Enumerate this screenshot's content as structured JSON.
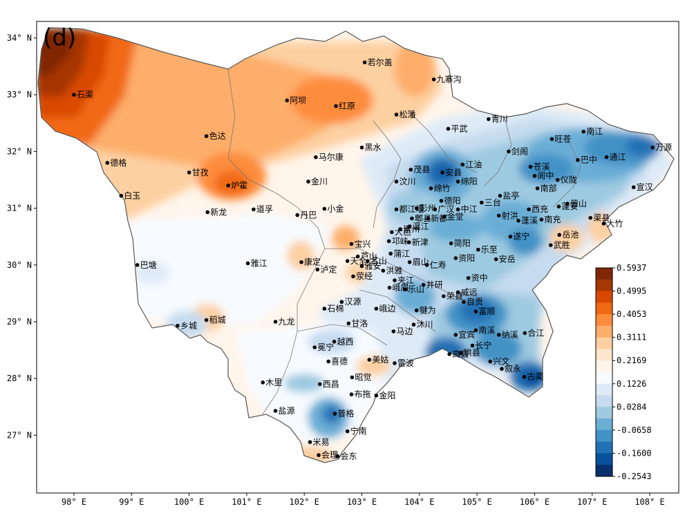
{
  "panel_label": "(d)",
  "lon_ticks": [
    "98° E",
    "99° E",
    "100° E",
    "101° E",
    "102° E",
    "103° E",
    "104° E",
    "105° E",
    "106° E",
    "107° E",
    "108° E"
  ],
  "lat_ticks": [
    "34° N",
    "33° N",
    "32° N",
    "31° N",
    "30° N",
    "29° N",
    "28° N",
    "27° N"
  ],
  "colorbar": {
    "labels": [
      "0.5937",
      "0.4995",
      "0.4053",
      "0.3111",
      "0.2169",
      "0.1226",
      "0.0284",
      "-0.0658",
      "-0.1600",
      "-0.2543"
    ],
    "colors": [
      "#7f2704",
      "#a63603",
      "#d94801",
      "#f16913",
      "#fd8d3c",
      "#fdae6b",
      "#fdd0a2",
      "#fee6ce",
      "#fff5eb",
      "#f7fbff",
      "#deebf7",
      "#c6dbef",
      "#9ecae1",
      "#6baed6",
      "#4292c6",
      "#2171b5",
      "#08519c",
      "#08306b"
    ]
  },
  "cities": [
    {
      "name": "石渠",
      "lon": 98.0,
      "lat": 33.0
    },
    {
      "name": "若尔盖",
      "lon": 103.05,
      "lat": 33.57
    },
    {
      "name": "九寨沟",
      "lon": 104.25,
      "lat": 33.27
    },
    {
      "name": "阿坝",
      "lon": 101.7,
      "lat": 32.9
    },
    {
      "name": "红原",
      "lon": 102.55,
      "lat": 32.8
    },
    {
      "name": "松潘",
      "lon": 103.6,
      "lat": 32.65
    },
    {
      "name": "青川",
      "lon": 105.2,
      "lat": 32.57
    },
    {
      "name": "平武",
      "lon": 104.5,
      "lat": 32.4
    },
    {
      "name": "色达",
      "lon": 100.3,
      "lat": 32.27
    },
    {
      "name": "南江",
      "lon": 106.85,
      "lat": 32.35
    },
    {
      "name": "旺苍",
      "lon": 106.3,
      "lat": 32.22
    },
    {
      "name": "德格",
      "lon": 98.58,
      "lat": 31.8
    },
    {
      "name": "马尔康",
      "lon": 102.2,
      "lat": 31.9
    },
    {
      "name": "黑水",
      "lon": 103.0,
      "lat": 32.07
    },
    {
      "name": "剑阁",
      "lon": 105.55,
      "lat": 32.0
    },
    {
      "name": "万源",
      "lon": 108.05,
      "lat": 32.07
    },
    {
      "name": "通江",
      "lon": 107.25,
      "lat": 31.9
    },
    {
      "name": "巴中",
      "lon": 106.75,
      "lat": 31.85
    },
    {
      "name": "江油",
      "lon": 104.75,
      "lat": 31.77
    },
    {
      "name": "苍溪",
      "lon": 105.93,
      "lat": 31.73
    },
    {
      "name": "茂县",
      "lon": 103.85,
      "lat": 31.68
    },
    {
      "name": "安县",
      "lon": 104.4,
      "lat": 31.63
    },
    {
      "name": "甘孜",
      "lon": 100.0,
      "lat": 31.63
    },
    {
      "name": "阆中",
      "lon": 106.0,
      "lat": 31.57
    },
    {
      "name": "仪陇",
      "lon": 106.4,
      "lat": 31.5
    },
    {
      "name": "汶川",
      "lon": 103.6,
      "lat": 31.47
    },
    {
      "name": "绵竹",
      "lon": 104.2,
      "lat": 31.35
    },
    {
      "name": "绵阳",
      "lon": 104.67,
      "lat": 31.47
    },
    {
      "name": "金川",
      "lon": 102.07,
      "lat": 31.47
    },
    {
      "name": "炉霍",
      "lon": 100.68,
      "lat": 31.4
    },
    {
      "name": "宣汉",
      "lon": 107.72,
      "lat": 31.37
    },
    {
      "name": "盐亭",
      "lon": 105.4,
      "lat": 31.22
    },
    {
      "name": "南部",
      "lon": 106.05,
      "lat": 31.35
    },
    {
      "name": "白玉",
      "lon": 98.82,
      "lat": 31.22
    },
    {
      "name": "三台",
      "lon": 105.08,
      "lat": 31.1
    },
    {
      "name": "营山",
      "lon": 106.57,
      "lat": 31.08
    },
    {
      "name": "德阳",
      "lon": 104.38,
      "lat": 31.13
    },
    {
      "name": "彭州",
      "lon": 103.95,
      "lat": 31.0
    },
    {
      "name": "西充",
      "lon": 105.9,
      "lat": 30.98
    },
    {
      "name": "渠县",
      "lon": 106.97,
      "lat": 30.83
    },
    {
      "name": "都江堰",
      "lon": 103.6,
      "lat": 30.98
    },
    {
      "name": "道孚",
      "lon": 101.12,
      "lat": 30.98
    },
    {
      "name": "小金",
      "lon": 102.35,
      "lat": 30.99
    },
    {
      "name": "蓬安",
      "lon": 106.42,
      "lat": 31.03
    },
    {
      "name": "广汉",
      "lon": 104.27,
      "lat": 30.98
    },
    {
      "name": "中江",
      "lon": 104.67,
      "lat": 30.98
    },
    {
      "name": "射洪",
      "lon": 105.38,
      "lat": 30.87
    },
    {
      "name": "新龙",
      "lon": 100.32,
      "lat": 30.93
    },
    {
      "name": "郫县",
      "lon": 103.87,
      "lat": 30.82
    },
    {
      "name": "南充",
      "lon": 106.12,
      "lat": 30.8
    },
    {
      "name": "丹巴",
      "lon": 101.88,
      "lat": 30.88
    },
    {
      "name": "大竹",
      "lon": 107.2,
      "lat": 30.73
    },
    {
      "name": "金堂",
      "lon": 104.43,
      "lat": 30.85
    },
    {
      "name": "蓬溪",
      "lon": 105.72,
      "lat": 30.78
    },
    {
      "name": "新都",
      "lon": 104.15,
      "lat": 30.82
    },
    {
      "name": "大邑",
      "lon": 103.52,
      "lat": 30.58
    },
    {
      "name": "温江",
      "lon": 103.83,
      "lat": 30.68
    },
    {
      "name": "宝兴",
      "lon": 102.82,
      "lat": 30.37
    },
    {
      "name": "岳池",
      "lon": 106.43,
      "lat": 30.53
    },
    {
      "name": "崇州",
      "lon": 103.67,
      "lat": 30.63
    },
    {
      "name": "遂宁",
      "lon": 105.58,
      "lat": 30.5
    },
    {
      "name": "邛崃",
      "lon": 103.47,
      "lat": 30.42
    },
    {
      "name": "简阳",
      "lon": 104.55,
      "lat": 30.38
    },
    {
      "name": "武胜",
      "lon": 106.28,
      "lat": 30.35
    },
    {
      "name": "芦山",
      "lon": 102.93,
      "lat": 30.15
    },
    {
      "name": "新津",
      "lon": 103.82,
      "lat": 30.4
    },
    {
      "name": "乐至",
      "lon": 105.02,
      "lat": 30.27
    },
    {
      "name": "康定",
      "lon": 101.95,
      "lat": 30.05
    },
    {
      "name": "天全",
      "lon": 102.75,
      "lat": 30.07
    },
    {
      "name": "名山",
      "lon": 103.1,
      "lat": 30.07
    },
    {
      "name": "蒲江",
      "lon": 103.5,
      "lat": 30.2
    },
    {
      "name": "巴塘",
      "lon": 99.1,
      "lat": 30.0
    },
    {
      "name": "雅江",
      "lon": 101.02,
      "lat": 30.03
    },
    {
      "name": "仁寿",
      "lon": 104.13,
      "lat": 30.0
    },
    {
      "name": "资阳",
      "lon": 104.63,
      "lat": 30.12
    },
    {
      "name": "安岳",
      "lon": 105.33,
      "lat": 30.1
    },
    {
      "name": "泸定",
      "lon": 102.23,
      "lat": 29.92
    },
    {
      "name": "雅安",
      "lon": 103.0,
      "lat": 29.98
    },
    {
      "name": "洪雅",
      "lon": 103.37,
      "lat": 29.9
    },
    {
      "name": "夹江",
      "lon": 103.57,
      "lat": 29.73
    },
    {
      "name": "资中",
      "lon": 104.85,
      "lat": 29.77
    },
    {
      "name": "荥经",
      "lon": 102.85,
      "lat": 29.8
    },
    {
      "name": "眉山",
      "lon": 103.83,
      "lat": 30.05
    },
    {
      "name": "峨眉",
      "lon": 103.48,
      "lat": 29.6
    },
    {
      "name": "井研",
      "lon": 104.07,
      "lat": 29.65
    },
    {
      "name": "威远",
      "lon": 104.67,
      "lat": 29.52
    },
    {
      "name": "汉源",
      "lon": 102.65,
      "lat": 29.35
    },
    {
      "name": "乐山",
      "lon": 103.75,
      "lat": 29.57
    },
    {
      "name": "荣县",
      "lon": 104.42,
      "lat": 29.45
    },
    {
      "name": "自贡",
      "lon": 104.77,
      "lat": 29.35
    },
    {
      "name": "石棉",
      "lon": 102.35,
      "lat": 29.23
    },
    {
      "name": "峨边",
      "lon": 103.25,
      "lat": 29.23
    },
    {
      "name": "犍为",
      "lon": 103.95,
      "lat": 29.2
    },
    {
      "name": "富顺",
      "lon": 104.98,
      "lat": 29.18
    },
    {
      "name": "稻城",
      "lon": 100.3,
      "lat": 29.03
    },
    {
      "name": "九龙",
      "lon": 101.5,
      "lat": 29.0
    },
    {
      "name": "乡城",
      "lon": 99.8,
      "lat": 28.93
    },
    {
      "name": "甘洛",
      "lon": 102.77,
      "lat": 28.97
    },
    {
      "name": "沐川",
      "lon": 103.9,
      "lat": 28.95
    },
    {
      "name": "南溪",
      "lon": 104.98,
      "lat": 28.85
    },
    {
      "name": "纳溪",
      "lon": 105.38,
      "lat": 28.77
    },
    {
      "name": "马边",
      "lon": 103.55,
      "lat": 28.83
    },
    {
      "name": "宜宾",
      "lon": 104.63,
      "lat": 28.77
    },
    {
      "name": "合江",
      "lon": 105.83,
      "lat": 28.8
    },
    {
      "name": "越西",
      "lon": 102.52,
      "lat": 28.65
    },
    {
      "name": "冕宁",
      "lon": 102.18,
      "lat": 28.55
    },
    {
      "name": "长宁",
      "lon": 104.92,
      "lat": 28.58
    },
    {
      "name": "高县",
      "lon": 104.52,
      "lat": 28.43
    },
    {
      "name": "兴文",
      "lon": 105.23,
      "lat": 28.3
    },
    {
      "name": "美姑",
      "lon": 103.13,
      "lat": 28.33
    },
    {
      "name": "珙县",
      "lon": 104.72,
      "lat": 28.45
    },
    {
      "name": "叙永",
      "lon": 105.43,
      "lat": 28.17
    },
    {
      "name": "喜德",
      "lon": 102.42,
      "lat": 28.3
    },
    {
      "name": "雷波",
      "lon": 103.57,
      "lat": 28.27
    },
    {
      "name": "古蔺",
      "lon": 105.82,
      "lat": 28.03
    },
    {
      "name": "昭觉",
      "lon": 102.83,
      "lat": 28.02
    },
    {
      "name": "木里",
      "lon": 101.28,
      "lat": 27.93
    },
    {
      "name": "西昌",
      "lon": 102.27,
      "lat": 27.9
    },
    {
      "name": "布拖",
      "lon": 102.82,
      "lat": 27.72
    },
    {
      "name": "金阳",
      "lon": 103.25,
      "lat": 27.7
    },
    {
      "name": "盐源",
      "lon": 101.5,
      "lat": 27.43
    },
    {
      "name": "普格",
      "lon": 102.53,
      "lat": 27.38
    },
    {
      "name": "宁南",
      "lon": 102.75,
      "lat": 27.07
    },
    {
      "name": "米易",
      "lon": 102.1,
      "lat": 26.88
    },
    {
      "name": "会理",
      "lon": 102.25,
      "lat": 26.65
    },
    {
      "name": "会东",
      "lon": 102.58,
      "lat": 26.63
    }
  ]
}
